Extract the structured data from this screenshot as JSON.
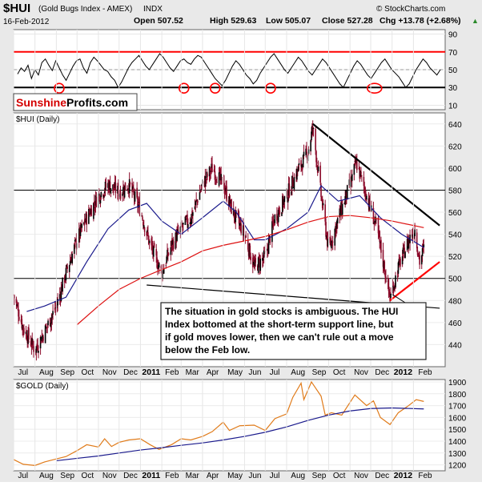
{
  "header": {
    "symbol": "$HUI",
    "name": "(Gold Bugs Index - AMEX)",
    "exchange": "INDX",
    "date": "16-Feb-2012",
    "open": "Open 507.52",
    "high": "High 529.63",
    "low": "Low 505.07",
    "close": "Close 527.28",
    "change": "Chg +13.78 (+2.68%)",
    "arrow": "▲",
    "copyright": "© StockCharts.com"
  },
  "brand": {
    "part1": "Sunshine",
    "part2": "Profits.com"
  },
  "annotation": {
    "lines": [
      "The situation in gold stocks is ambiguous. The HUI",
      "Index bottomed at the short-term support line, but",
      "if gold moves lower, then we can't rule out a move",
      "below the Feb low."
    ]
  },
  "x_axis": {
    "labels": [
      "Jul",
      "Aug",
      "Sep",
      "Oct",
      "Nov",
      "Dec",
      "2011",
      "Feb",
      "Mar",
      "Apr",
      "May",
      "Jun",
      "Jul",
      "Aug",
      "Sep",
      "Oct",
      "Nov",
      "Dec",
      "2012",
      "Feb"
    ],
    "bold": [
      "2011",
      "2012"
    ]
  },
  "colors": {
    "candle": "#8b0a2a",
    "ma_blue": "#1a1a8c",
    "ma_red": "#dd1111",
    "gold_line": "#e07b1a",
    "rsi_line": "#000000",
    "trend_red": "#ff0000",
    "trend_black": "#000000",
    "panel_bg": "#ffffff",
    "frame_bg": "#e9e9e9"
  },
  "chart_data": [
    {
      "type": "line",
      "name": "RSI",
      "ylim": [
        5,
        95
      ],
      "yticks": [
        10,
        30,
        50,
        70,
        90
      ],
      "hlines": [
        {
          "y": 70,
          "color": "#ff0000"
        },
        {
          "y": 30,
          "color": "#000000"
        }
      ],
      "series": [
        {
          "values": [
            45,
            52,
            48,
            55,
            40,
            50,
            44,
            58,
            62,
            55,
            49,
            60,
            52,
            44,
            38,
            46,
            54,
            60,
            62,
            52,
            46,
            58,
            64,
            60,
            55,
            50,
            48,
            42,
            38,
            30,
            36,
            44,
            52,
            58,
            62,
            66,
            60,
            54,
            50,
            56,
            62,
            68,
            64,
            58,
            52,
            48,
            54,
            60,
            62,
            58,
            56,
            62,
            66,
            64,
            58,
            52,
            46,
            40,
            36,
            32,
            38,
            46,
            54,
            60,
            56,
            50,
            44,
            40,
            34,
            38,
            46,
            52,
            58,
            64,
            68,
            62,
            56,
            50,
            46,
            52,
            58,
            64,
            60,
            54,
            48,
            44,
            50,
            56,
            62,
            58,
            52,
            46,
            40,
            34,
            30,
            38,
            46,
            54,
            60,
            56,
            50,
            44,
            40,
            46,
            52,
            58,
            62,
            56,
            50,
            46,
            42,
            36,
            30,
            34,
            42,
            50,
            56,
            62,
            58,
            52,
            48,
            44,
            50
          ]
        }
      ],
      "circles_at_index": [
        12,
        48,
        57,
        73,
        103
      ]
    },
    {
      "type": "candlestick",
      "title": "$HUI (Daily)",
      "ylim": [
        420,
        650
      ],
      "yticks": [
        440,
        460,
        480,
        500,
        520,
        540,
        560,
        580,
        600,
        620,
        640
      ],
      "hlines": [
        580,
        500
      ],
      "x_range": [
        "2010-07-01",
        "2012-02-16"
      ],
      "close_path": [
        [
          "2010-07-01",
          485
        ],
        [
          "2010-07-15",
          455
        ],
        [
          "2010-08-01",
          435
        ],
        [
          "2010-08-15",
          452
        ],
        [
          "2010-09-01",
          475
        ],
        [
          "2010-09-15",
          505
        ],
        [
          "2010-10-01",
          535
        ],
        [
          "2010-10-15",
          555
        ],
        [
          "2010-11-01",
          575
        ],
        [
          "2010-11-15",
          585
        ],
        [
          "2010-12-01",
          578
        ],
        [
          "2010-12-15",
          585
        ],
        [
          "2011-01-01",
          562
        ],
        [
          "2011-01-15",
          530
        ],
        [
          "2011-02-01",
          505
        ],
        [
          "2011-02-15",
          530
        ],
        [
          "2011-03-01",
          545
        ],
        [
          "2011-03-15",
          555
        ],
        [
          "2011-04-01",
          585
        ],
        [
          "2011-04-15",
          600
        ],
        [
          "2011-05-01",
          585
        ],
        [
          "2011-05-15",
          560
        ],
        [
          "2011-06-01",
          540
        ],
        [
          "2011-06-15",
          510
        ],
        [
          "2011-07-01",
          520
        ],
        [
          "2011-07-15",
          555
        ],
        [
          "2011-08-01",
          575
        ],
        [
          "2011-08-15",
          595
        ],
        [
          "2011-09-01",
          615
        ],
        [
          "2011-09-08",
          637
        ],
        [
          "2011-09-20",
          575
        ],
        [
          "2011-10-01",
          525
        ],
        [
          "2011-10-15",
          555
        ],
        [
          "2011-11-01",
          585
        ],
        [
          "2011-11-10",
          605
        ],
        [
          "2011-11-25",
          575
        ],
        [
          "2011-12-10",
          545
        ],
        [
          "2011-12-29",
          482
        ],
        [
          "2012-01-10",
          510
        ],
        [
          "2012-01-25",
          535
        ],
        [
          "2012-02-03",
          545
        ],
        [
          "2012-02-10",
          515
        ],
        [
          "2012-02-16",
          527
        ]
      ],
      "series": [
        {
          "name": "MA50",
          "color": "#1a1a8c",
          "points": [
            [
              "2010-07-20",
              470
            ],
            [
              "2010-08-15",
              475
            ],
            [
              "2010-09-15",
              483
            ],
            [
              "2010-10-15",
              515
            ],
            [
              "2010-11-15",
              545
            ],
            [
              "2010-12-15",
              562
            ],
            [
              "2011-01-10",
              568
            ],
            [
              "2011-02-01",
              552
            ],
            [
              "2011-03-01",
              540
            ],
            [
              "2011-04-01",
              555
            ],
            [
              "2011-05-01",
              570
            ],
            [
              "2011-05-20",
              560
            ],
            [
              "2011-06-15",
              535
            ],
            [
              "2011-07-01",
              535
            ],
            [
              "2011-08-01",
              545
            ],
            [
              "2011-09-01",
              560
            ],
            [
              "2011-09-20",
              584
            ],
            [
              "2011-10-15",
              570
            ],
            [
              "2011-11-15",
              575
            ],
            [
              "2011-12-15",
              555
            ],
            [
              "2012-01-15",
              540
            ],
            [
              "2012-02-16",
              528
            ]
          ]
        },
        {
          "name": "MA200",
          "color": "#dd1111",
          "points": [
            [
              "2010-10-01",
              458
            ],
            [
              "2010-11-01",
              475
            ],
            [
              "2010-12-01",
              490
            ],
            [
              "2011-01-01",
              500
            ],
            [
              "2011-02-01",
              508
            ],
            [
              "2011-03-01",
              515
            ],
            [
              "2011-04-01",
              525
            ],
            [
              "2011-05-01",
              530
            ],
            [
              "2011-06-01",
              534
            ],
            [
              "2011-07-01",
              538
            ],
            [
              "2011-08-01",
              544
            ],
            [
              "2011-09-01",
              551
            ],
            [
              "2011-10-01",
              556
            ],
            [
              "2011-11-01",
              557
            ],
            [
              "2011-12-01",
              555
            ],
            [
              "2012-01-01",
              552
            ],
            [
              "2012-02-16",
              546
            ]
          ]
        }
      ],
      "trendlines": [
        {
          "color": "#000000",
          "from": [
            "2011-09-08",
            640
          ],
          "to": [
            "2012-03-10",
            548
          ]
        },
        {
          "color": "#000000",
          "from": [
            "2011-01-10",
            494
          ],
          "to": [
            "2012-03-10",
            473
          ]
        },
        {
          "color": "#ff0000",
          "from": [
            "2011-12-29",
            480
          ],
          "to": [
            "2012-03-10",
            515
          ]
        }
      ]
    },
    {
      "type": "line",
      "title": "$GOLD (Daily)",
      "ylim": [
        1150,
        1920
      ],
      "yticks": [
        1200,
        1300,
        1400,
        1500,
        1600,
        1700,
        1800,
        1900
      ],
      "series": [
        {
          "name": "Gold",
          "color": "#e07b1a",
          "points": [
            [
              "2010-07-01",
              1245
            ],
            [
              "2010-07-15",
              1205
            ],
            [
              "2010-08-01",
              1195
            ],
            [
              "2010-08-15",
              1225
            ],
            [
              "2010-09-01",
              1250
            ],
            [
              "2010-09-15",
              1270
            ],
            [
              "2010-10-01",
              1320
            ],
            [
              "2010-10-15",
              1370
            ],
            [
              "2010-11-01",
              1350
            ],
            [
              "2010-11-10",
              1420
            ],
            [
              "2010-11-20",
              1355
            ],
            [
              "2010-12-01",
              1390
            ],
            [
              "2010-12-15",
              1410
            ],
            [
              "2011-01-01",
              1420
            ],
            [
              "2011-01-15",
              1370
            ],
            [
              "2011-01-28",
              1330
            ],
            [
              "2011-02-15",
              1370
            ],
            [
              "2011-03-01",
              1420
            ],
            [
              "2011-03-15",
              1410
            ],
            [
              "2011-04-01",
              1440
            ],
            [
              "2011-04-15",
              1480
            ],
            [
              "2011-05-01",
              1560
            ],
            [
              "2011-05-10",
              1490
            ],
            [
              "2011-05-25",
              1530
            ],
            [
              "2011-06-15",
              1535
            ],
            [
              "2011-07-01",
              1490
            ],
            [
              "2011-07-15",
              1590
            ],
            [
              "2011-08-01",
              1630
            ],
            [
              "2011-08-10",
              1770
            ],
            [
              "2011-08-22",
              1890
            ],
            [
              "2011-08-26",
              1750
            ],
            [
              "2011-09-06",
              1900
            ],
            [
              "2011-09-20",
              1780
            ],
            [
              "2011-09-26",
              1620
            ],
            [
              "2011-10-05",
              1640
            ],
            [
              "2011-10-20",
              1620
            ],
            [
              "2011-11-08",
              1790
            ],
            [
              "2011-11-25",
              1700
            ],
            [
              "2011-12-05",
              1740
            ],
            [
              "2011-12-15",
              1600
            ],
            [
              "2011-12-29",
              1540
            ],
            [
              "2012-01-10",
              1640
            ],
            [
              "2012-01-25",
              1700
            ],
            [
              "2012-02-05",
              1750
            ],
            [
              "2012-02-16",
              1735
            ]
          ]
        },
        {
          "name": "MA200",
          "color": "#1a1a8c",
          "points": [
            [
              "2010-09-01",
              1235
            ],
            [
              "2010-10-01",
              1255
            ],
            [
              "2010-11-01",
              1275
            ],
            [
              "2010-12-01",
              1300
            ],
            [
              "2011-01-01",
              1325
            ],
            [
              "2011-02-01",
              1345
            ],
            [
              "2011-03-01",
              1365
            ],
            [
              "2011-04-01",
              1385
            ],
            [
              "2011-05-01",
              1410
            ],
            [
              "2011-06-01",
              1440
            ],
            [
              "2011-07-01",
              1475
            ],
            [
              "2011-08-01",
              1520
            ],
            [
              "2011-09-01",
              1575
            ],
            [
              "2011-10-01",
              1620
            ],
            [
              "2011-11-01",
              1655
            ],
            [
              "2011-12-01",
              1675
            ],
            [
              "2012-01-01",
              1680
            ],
            [
              "2012-02-16",
              1672
            ]
          ]
        }
      ]
    }
  ]
}
